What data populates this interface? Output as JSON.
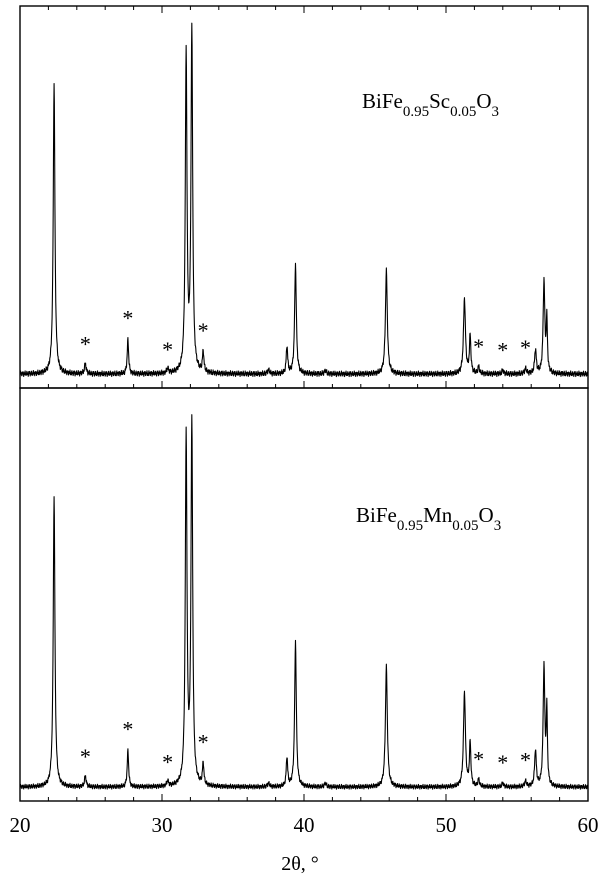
{
  "chart_data": [
    {
      "type": "line",
      "panel": "top",
      "label": {
        "base": "BiFe",
        "sub1": "0.95",
        "mid": "Sc",
        "sub2": "0.05",
        "end": "O",
        "sub3": "3"
      },
      "xlim": [
        20,
        60
      ],
      "baseline": 0.04,
      "noise": 0.005,
      "peaks": [
        {
          "x": 22.4,
          "h": 0.85,
          "w": 0.07
        },
        {
          "x": 24.6,
          "h": 0.03,
          "w": 0.07
        },
        {
          "x": 27.6,
          "h": 0.1,
          "w": 0.06
        },
        {
          "x": 30.4,
          "h": 0.015,
          "w": 0.07
        },
        {
          "x": 31.7,
          "h": 0.93,
          "w": 0.07
        },
        {
          "x": 32.1,
          "h": 1.0,
          "w": 0.07
        },
        {
          "x": 32.9,
          "h": 0.06,
          "w": 0.06
        },
        {
          "x": 37.5,
          "h": 0.012,
          "w": 0.08
        },
        {
          "x": 38.8,
          "h": 0.08,
          "w": 0.06
        },
        {
          "x": 39.4,
          "h": 0.32,
          "w": 0.07
        },
        {
          "x": 41.5,
          "h": 0.01,
          "w": 0.08
        },
        {
          "x": 45.8,
          "h": 0.3,
          "w": 0.08
        },
        {
          "x": 51.3,
          "h": 0.22,
          "w": 0.08
        },
        {
          "x": 51.7,
          "h": 0.11,
          "w": 0.06
        },
        {
          "x": 52.3,
          "h": 0.02,
          "w": 0.07
        },
        {
          "x": 54.0,
          "h": 0.01,
          "w": 0.08
        },
        {
          "x": 55.6,
          "h": 0.015,
          "w": 0.08
        },
        {
          "x": 56.3,
          "h": 0.07,
          "w": 0.07
        },
        {
          "x": 56.9,
          "h": 0.27,
          "w": 0.07
        },
        {
          "x": 57.1,
          "h": 0.15,
          "w": 0.05
        }
      ],
      "stars": [
        24.6,
        27.6,
        30.4,
        32.9,
        52.3,
        54.0,
        55.6
      ]
    },
    {
      "type": "line",
      "panel": "bottom",
      "label": {
        "base": "BiFe",
        "sub1": "0.95",
        "mid": "Mn",
        "sub2": "0.05",
        "end": "O",
        "sub3": "3"
      },
      "xlim": [
        20,
        60
      ],
      "baseline": 0.03,
      "noise": 0.004,
      "peaks": [
        {
          "x": 22.4,
          "h": 0.8,
          "w": 0.07
        },
        {
          "x": 24.6,
          "h": 0.03,
          "w": 0.07
        },
        {
          "x": 27.6,
          "h": 0.1,
          "w": 0.06
        },
        {
          "x": 30.4,
          "h": 0.015,
          "w": 0.07
        },
        {
          "x": 31.7,
          "h": 0.96,
          "w": 0.07
        },
        {
          "x": 32.1,
          "h": 1.0,
          "w": 0.07
        },
        {
          "x": 32.9,
          "h": 0.06,
          "w": 0.06
        },
        {
          "x": 37.5,
          "h": 0.01,
          "w": 0.08
        },
        {
          "x": 38.8,
          "h": 0.08,
          "w": 0.06
        },
        {
          "x": 39.4,
          "h": 0.4,
          "w": 0.07
        },
        {
          "x": 41.5,
          "h": 0.01,
          "w": 0.08
        },
        {
          "x": 45.8,
          "h": 0.33,
          "w": 0.08
        },
        {
          "x": 51.3,
          "h": 0.26,
          "w": 0.08
        },
        {
          "x": 51.7,
          "h": 0.12,
          "w": 0.06
        },
        {
          "x": 52.3,
          "h": 0.02,
          "w": 0.07
        },
        {
          "x": 54.0,
          "h": 0.01,
          "w": 0.08
        },
        {
          "x": 55.6,
          "h": 0.015,
          "w": 0.08
        },
        {
          "x": 56.3,
          "h": 0.1,
          "w": 0.07
        },
        {
          "x": 56.9,
          "h": 0.33,
          "w": 0.07
        },
        {
          "x": 57.1,
          "h": 0.2,
          "w": 0.05
        }
      ],
      "stars": [
        24.6,
        27.6,
        30.4,
        32.9,
        52.3,
        54.0,
        55.6
      ]
    }
  ],
  "xaxis": {
    "ticks": [
      20,
      30,
      40,
      50,
      60
    ],
    "tick_labels": [
      "20",
      "30",
      "40",
      "50",
      "60"
    ],
    "minor_step": 2,
    "label": "2θ, °"
  },
  "star_symbol": "*"
}
